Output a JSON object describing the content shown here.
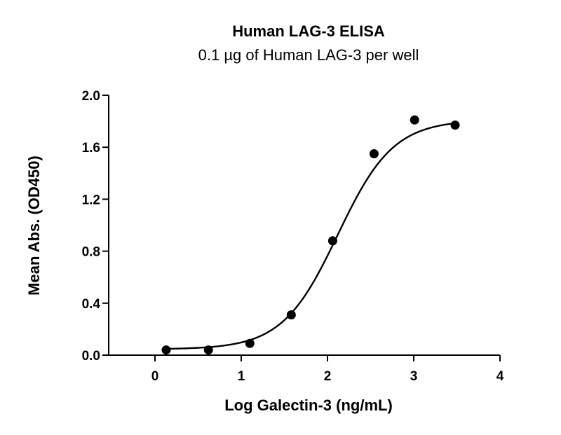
{
  "chart_data": {
    "type": "scatter",
    "title": "Human LAG-3 ELISA",
    "subtitle": "0.1 µg of Human LAG-3 per well",
    "xlabel": "Log Galectin-3 (ng/mL)",
    "ylabel": "Mean  Abs. (OD450)",
    "xlim": [
      0,
      4
    ],
    "ylim": [
      0,
      2.0
    ],
    "x_ticks": [
      0,
      1,
      2,
      3,
      4
    ],
    "x_tick_labels": [
      "0",
      "1",
      "2",
      "3",
      "4"
    ],
    "y_ticks": [
      0,
      0.4,
      0.8,
      1.2,
      1.6,
      2.0
    ],
    "y_tick_labels": [
      "0.0",
      "0.4",
      "0.8",
      "1.2",
      "1.6",
      "2.0"
    ],
    "grid": false,
    "series": [
      {
        "points": [
          {
            "x": 0.13,
            "y": 0.04
          },
          {
            "x": 0.62,
            "y": 0.04
          },
          {
            "x": 1.1,
            "y": 0.09
          },
          {
            "x": 1.58,
            "y": 0.31
          },
          {
            "x": 2.06,
            "y": 0.88
          },
          {
            "x": 2.54,
            "y": 1.55
          },
          {
            "x": 3.01,
            "y": 1.81
          },
          {
            "x": 3.48,
            "y": 1.77
          }
        ],
        "fit": {
          "model": "four-parameter logistic",
          "bottom": 0.045,
          "top": 1.81,
          "log_ec50": 2.12,
          "hill_slope": 1.35,
          "x_range": [
            0.13,
            3.48
          ]
        }
      }
    ]
  }
}
